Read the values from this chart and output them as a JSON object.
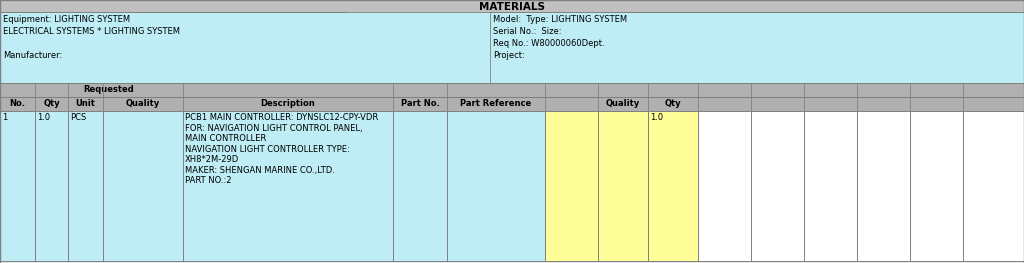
{
  "title_bar": "MATERIALS",
  "header_info_left": [
    "Equipment: LIGHTING SYSTEM",
    "ELECTRICAL SYSTEMS * LIGHTING SYSTEM",
    "",
    "Manufacturer:"
  ],
  "header_info_right": [
    "Model:  Type: LIGHTING SYSTEM",
    "Serial No.:  Size:",
    "Req No.: W80000060Dept.",
    "Project:"
  ],
  "col_headers_bottom": [
    "No.",
    "Qty",
    "Unit",
    "Quality",
    "Description",
    "Part No.",
    "Part Reference",
    "",
    "Quality",
    "Qty",
    "",
    "",
    "",
    "",
    "",
    ""
  ],
  "row_data": {
    "no": "1",
    "qty": "1.0",
    "unit": "PCS",
    "quality": "",
    "description": [
      "PCB1 MAIN CONTROLLER: DYNSLC12-CPY-VDR",
      "FOR: NAVIGATION LIGHT CONTROL PANEL,",
      "MAIN CONTROLLER",
      "NAVIGATION LIGHT CONTROLLER TYPE:",
      "XH8*2M-29D",
      "MAKER: SHENGAN MARINE CO.,LTD.",
      "PART NO.:2"
    ],
    "part_no": "",
    "part_reference": "",
    "quality2": "",
    "qty2": "1.0"
  },
  "bg_light_blue": "#beedf5",
  "bg_gray_header": "#b0b0b0",
  "bg_gray_title": "#c0c0c0",
  "bg_yellow": "#ffff99",
  "bg_white": "#ffffff",
  "border_color": "#808080",
  "text_color": "#000000",
  "font_size": 6.0,
  "header_font_size": 7.0,
  "title_font_size": 7.5
}
